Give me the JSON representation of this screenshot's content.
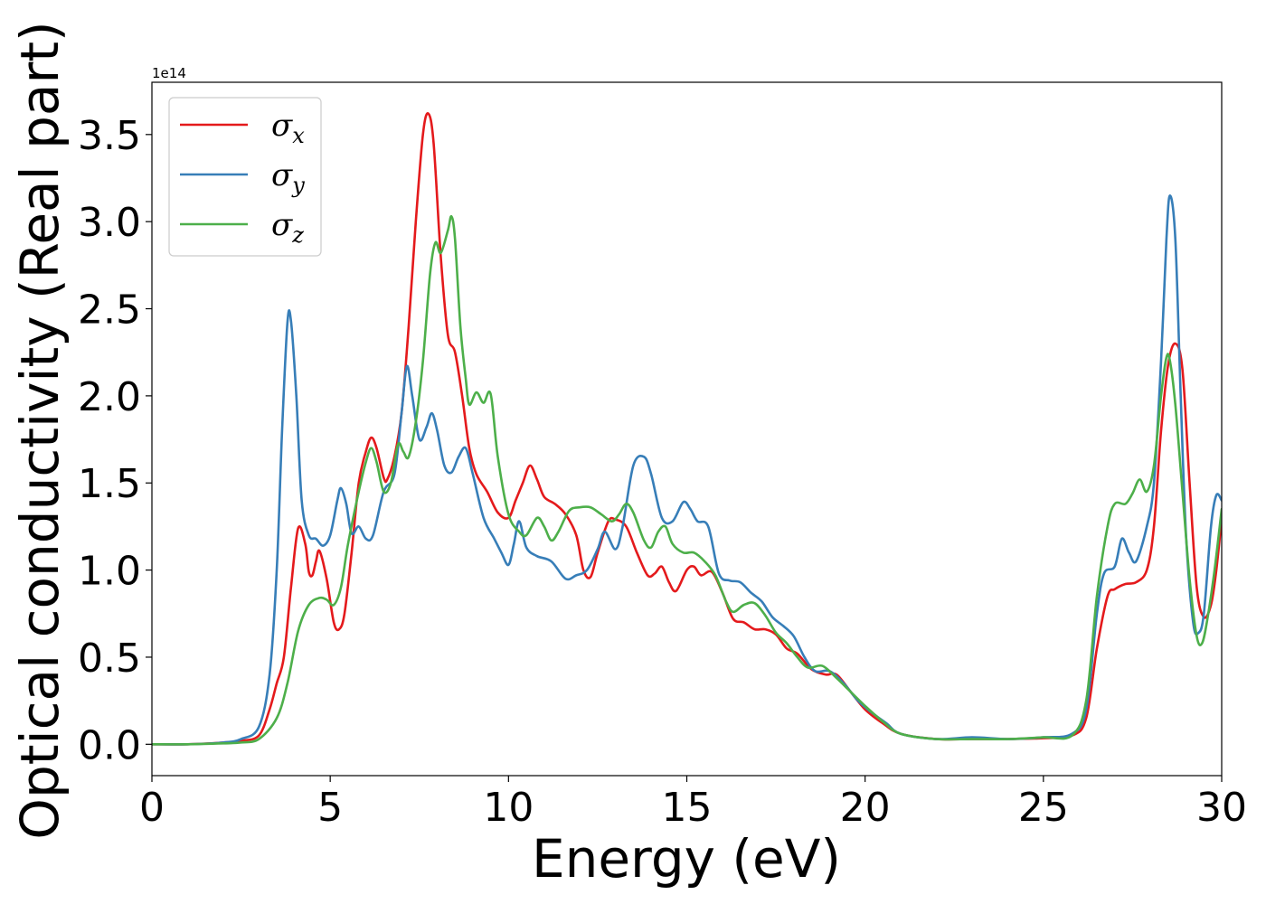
{
  "chart_data": {
    "type": "line",
    "xlabel": "Energy (eV)",
    "ylabel": "Optical conductivity (Real part)",
    "y_offset_label": "1e14",
    "xlim": [
      0,
      30
    ],
    "ylim": [
      -0.18,
      3.8
    ],
    "x_ticks": [
      0,
      5,
      10,
      15,
      20,
      25,
      30
    ],
    "x_tick_labels": [
      "0",
      "5",
      "10",
      "15",
      "20",
      "25",
      "30"
    ],
    "y_ticks": [
      0.0,
      0.5,
      1.0,
      1.5,
      2.0,
      2.5,
      3.0,
      3.5
    ],
    "y_tick_labels": [
      "0.0",
      "0.5",
      "1.0",
      "1.5",
      "2.0",
      "2.5",
      "3.0",
      "3.5"
    ],
    "grid": false,
    "legend_position": "top-left",
    "series": [
      {
        "name": "σx",
        "name_base": "σ",
        "name_sub": "x",
        "color": "#e41a1c",
        "points": [
          [
            0,
            0
          ],
          [
            1,
            0
          ],
          [
            2,
            0.01
          ],
          [
            2.5,
            0.02
          ],
          [
            3,
            0.05
          ],
          [
            3.3,
            0.2
          ],
          [
            3.5,
            0.35
          ],
          [
            3.7,
            0.5
          ],
          [
            3.9,
            0.9
          ],
          [
            4.1,
            1.24
          ],
          [
            4.3,
            1.15
          ],
          [
            4.4,
            0.99
          ],
          [
            4.5,
            0.97
          ],
          [
            4.6,
            1.05
          ],
          [
            4.7,
            1.11
          ],
          [
            4.9,
            0.95
          ],
          [
            5.1,
            0.7
          ],
          [
            5.25,
            0.66
          ],
          [
            5.4,
            0.75
          ],
          [
            5.6,
            1.1
          ],
          [
            5.8,
            1.5
          ],
          [
            6.0,
            1.68
          ],
          [
            6.15,
            1.76
          ],
          [
            6.3,
            1.7
          ],
          [
            6.5,
            1.53
          ],
          [
            6.6,
            1.52
          ],
          [
            6.8,
            1.65
          ],
          [
            7.0,
            1.9
          ],
          [
            7.2,
            2.4
          ],
          [
            7.4,
            3.0
          ],
          [
            7.6,
            3.5
          ],
          [
            7.75,
            3.62
          ],
          [
            7.9,
            3.45
          ],
          [
            8.1,
            2.8
          ],
          [
            8.3,
            2.35
          ],
          [
            8.5,
            2.25
          ],
          [
            8.7,
            2.0
          ],
          [
            8.9,
            1.7
          ],
          [
            9.1,
            1.55
          ],
          [
            9.4,
            1.45
          ],
          [
            9.7,
            1.33
          ],
          [
            10.0,
            1.3
          ],
          [
            10.2,
            1.4
          ],
          [
            10.4,
            1.5
          ],
          [
            10.6,
            1.6
          ],
          [
            10.8,
            1.52
          ],
          [
            11.0,
            1.42
          ],
          [
            11.3,
            1.38
          ],
          [
            11.6,
            1.32
          ],
          [
            11.9,
            1.2
          ],
          [
            12.1,
            1.0
          ],
          [
            12.3,
            0.96
          ],
          [
            12.5,
            1.1
          ],
          [
            12.8,
            1.28
          ],
          [
            13.0,
            1.29
          ],
          [
            13.3,
            1.25
          ],
          [
            13.6,
            1.1
          ],
          [
            13.9,
            0.97
          ],
          [
            14.1,
            0.98
          ],
          [
            14.3,
            1.02
          ],
          [
            14.5,
            0.93
          ],
          [
            14.7,
            0.88
          ],
          [
            15.0,
            1.0
          ],
          [
            15.2,
            1.02
          ],
          [
            15.4,
            0.97
          ],
          [
            15.7,
            0.99
          ],
          [
            16.0,
            0.87
          ],
          [
            16.3,
            0.72
          ],
          [
            16.6,
            0.7
          ],
          [
            16.9,
            0.66
          ],
          [
            17.2,
            0.66
          ],
          [
            17.5,
            0.63
          ],
          [
            17.8,
            0.55
          ],
          [
            18.1,
            0.52
          ],
          [
            18.5,
            0.43
          ],
          [
            18.9,
            0.4
          ],
          [
            19.2,
            0.4
          ],
          [
            19.6,
            0.3
          ],
          [
            20.0,
            0.2
          ],
          [
            20.5,
            0.12
          ],
          [
            21.0,
            0.06
          ],
          [
            22.0,
            0.03
          ],
          [
            23.0,
            0.03
          ],
          [
            24.0,
            0.03
          ],
          [
            25.0,
            0.035
          ],
          [
            25.8,
            0.05
          ],
          [
            26.2,
            0.15
          ],
          [
            26.5,
            0.55
          ],
          [
            26.8,
            0.85
          ],
          [
            27.0,
            0.89
          ],
          [
            27.3,
            0.92
          ],
          [
            27.6,
            0.93
          ],
          [
            27.9,
            1.0
          ],
          [
            28.1,
            1.25
          ],
          [
            28.3,
            1.8
          ],
          [
            28.5,
            2.18
          ],
          [
            28.7,
            2.3
          ],
          [
            28.9,
            2.15
          ],
          [
            29.1,
            1.5
          ],
          [
            29.3,
            0.9
          ],
          [
            29.5,
            0.73
          ],
          [
            29.7,
            0.8
          ],
          [
            29.85,
            1.0
          ],
          [
            30.0,
            1.3
          ]
        ]
      },
      {
        "name": "σy",
        "name_base": "σ",
        "name_sub": "y",
        "color": "#377eb8",
        "points": [
          [
            0,
            0
          ],
          [
            1,
            0
          ],
          [
            2,
            0.01
          ],
          [
            2.5,
            0.03
          ],
          [
            3,
            0.1
          ],
          [
            3.3,
            0.4
          ],
          [
            3.5,
            1.0
          ],
          [
            3.65,
            1.8
          ],
          [
            3.8,
            2.42
          ],
          [
            3.9,
            2.43
          ],
          [
            4.05,
            2.0
          ],
          [
            4.2,
            1.4
          ],
          [
            4.4,
            1.2
          ],
          [
            4.6,
            1.18
          ],
          [
            4.8,
            1.14
          ],
          [
            5.0,
            1.2
          ],
          [
            5.2,
            1.4
          ],
          [
            5.3,
            1.47
          ],
          [
            5.45,
            1.38
          ],
          [
            5.6,
            1.21
          ],
          [
            5.8,
            1.25
          ],
          [
            6.0,
            1.18
          ],
          [
            6.2,
            1.2
          ],
          [
            6.5,
            1.45
          ],
          [
            6.8,
            1.55
          ],
          [
            7.0,
            1.9
          ],
          [
            7.15,
            2.17
          ],
          [
            7.3,
            2.0
          ],
          [
            7.5,
            1.75
          ],
          [
            7.7,
            1.82
          ],
          [
            7.85,
            1.9
          ],
          [
            8.0,
            1.8
          ],
          [
            8.2,
            1.6
          ],
          [
            8.4,
            1.56
          ],
          [
            8.6,
            1.65
          ],
          [
            8.8,
            1.7
          ],
          [
            9.0,
            1.55
          ],
          [
            9.3,
            1.3
          ],
          [
            9.6,
            1.18
          ],
          [
            9.8,
            1.1
          ],
          [
            10.0,
            1.03
          ],
          [
            10.15,
            1.15
          ],
          [
            10.3,
            1.28
          ],
          [
            10.5,
            1.13
          ],
          [
            10.8,
            1.08
          ],
          [
            11.2,
            1.05
          ],
          [
            11.6,
            0.95
          ],
          [
            11.9,
            0.97
          ],
          [
            12.2,
            1.0
          ],
          [
            12.5,
            1.12
          ],
          [
            12.7,
            1.22
          ],
          [
            13.0,
            1.12
          ],
          [
            13.2,
            1.25
          ],
          [
            13.5,
            1.6
          ],
          [
            13.8,
            1.65
          ],
          [
            14.0,
            1.55
          ],
          [
            14.3,
            1.3
          ],
          [
            14.6,
            1.28
          ],
          [
            14.9,
            1.39
          ],
          [
            15.1,
            1.35
          ],
          [
            15.3,
            1.28
          ],
          [
            15.6,
            1.25
          ],
          [
            15.9,
            0.98
          ],
          [
            16.2,
            0.94
          ],
          [
            16.5,
            0.93
          ],
          [
            16.8,
            0.87
          ],
          [
            17.1,
            0.82
          ],
          [
            17.4,
            0.73
          ],
          [
            17.7,
            0.68
          ],
          [
            18.0,
            0.62
          ],
          [
            18.3,
            0.5
          ],
          [
            18.6,
            0.42
          ],
          [
            19.0,
            0.42
          ],
          [
            19.4,
            0.35
          ],
          [
            19.8,
            0.25
          ],
          [
            20.2,
            0.18
          ],
          [
            20.6,
            0.12
          ],
          [
            21.0,
            0.06
          ],
          [
            22.0,
            0.03
          ],
          [
            23.0,
            0.04
          ],
          [
            24.0,
            0.03
          ],
          [
            25.0,
            0.04
          ],
          [
            25.8,
            0.06
          ],
          [
            26.2,
            0.2
          ],
          [
            26.5,
            0.75
          ],
          [
            26.7,
            0.98
          ],
          [
            27.0,
            1.02
          ],
          [
            27.2,
            1.18
          ],
          [
            27.4,
            1.1
          ],
          [
            27.6,
            1.05
          ],
          [
            27.9,
            1.25
          ],
          [
            28.1,
            1.5
          ],
          [
            28.3,
            2.2
          ],
          [
            28.45,
            2.9
          ],
          [
            28.55,
            3.15
          ],
          [
            28.7,
            2.9
          ],
          [
            28.85,
            2.0
          ],
          [
            29.0,
            1.2
          ],
          [
            29.2,
            0.7
          ],
          [
            29.35,
            0.64
          ],
          [
            29.5,
            0.75
          ],
          [
            29.7,
            1.25
          ],
          [
            29.85,
            1.43
          ],
          [
            30.0,
            1.4
          ]
        ]
      },
      {
        "name": "σz",
        "name_base": "σ",
        "name_sub": "z",
        "color": "#4daf4a",
        "points": [
          [
            0,
            0
          ],
          [
            1,
            0
          ],
          [
            2,
            0.005
          ],
          [
            2.5,
            0.01
          ],
          [
            3,
            0.03
          ],
          [
            3.5,
            0.15
          ],
          [
            3.8,
            0.35
          ],
          [
            4.1,
            0.65
          ],
          [
            4.4,
            0.8
          ],
          [
            4.7,
            0.84
          ],
          [
            4.9,
            0.83
          ],
          [
            5.1,
            0.8
          ],
          [
            5.3,
            0.9
          ],
          [
            5.5,
            1.15
          ],
          [
            5.8,
            1.45
          ],
          [
            6.0,
            1.62
          ],
          [
            6.15,
            1.7
          ],
          [
            6.3,
            1.62
          ],
          [
            6.5,
            1.45
          ],
          [
            6.7,
            1.5
          ],
          [
            6.9,
            1.72
          ],
          [
            7.05,
            1.68
          ],
          [
            7.2,
            1.65
          ],
          [
            7.4,
            1.85
          ],
          [
            7.6,
            2.2
          ],
          [
            7.8,
            2.7
          ],
          [
            7.95,
            2.88
          ],
          [
            8.1,
            2.82
          ],
          [
            8.3,
            2.95
          ],
          [
            8.4,
            3.03
          ],
          [
            8.5,
            2.9
          ],
          [
            8.65,
            2.4
          ],
          [
            8.8,
            2.1
          ],
          [
            8.9,
            1.95
          ],
          [
            9.1,
            2.02
          ],
          [
            9.3,
            1.96
          ],
          [
            9.5,
            2.01
          ],
          [
            9.7,
            1.65
          ],
          [
            10.0,
            1.32
          ],
          [
            10.3,
            1.22
          ],
          [
            10.5,
            1.2
          ],
          [
            10.8,
            1.3
          ],
          [
            11.0,
            1.25
          ],
          [
            11.2,
            1.17
          ],
          [
            11.4,
            1.22
          ],
          [
            11.7,
            1.34
          ],
          [
            12.0,
            1.36
          ],
          [
            12.3,
            1.36
          ],
          [
            12.6,
            1.32
          ],
          [
            12.9,
            1.28
          ],
          [
            13.1,
            1.32
          ],
          [
            13.3,
            1.38
          ],
          [
            13.5,
            1.33
          ],
          [
            13.8,
            1.17
          ],
          [
            14.0,
            1.13
          ],
          [
            14.2,
            1.22
          ],
          [
            14.4,
            1.25
          ],
          [
            14.6,
            1.15
          ],
          [
            14.9,
            1.1
          ],
          [
            15.2,
            1.1
          ],
          [
            15.5,
            1.05
          ],
          [
            15.8,
            0.97
          ],
          [
            16.1,
            0.82
          ],
          [
            16.3,
            0.76
          ],
          [
            16.6,
            0.8
          ],
          [
            16.9,
            0.81
          ],
          [
            17.2,
            0.74
          ],
          [
            17.5,
            0.64
          ],
          [
            17.8,
            0.58
          ],
          [
            18.1,
            0.5
          ],
          [
            18.4,
            0.44
          ],
          [
            18.8,
            0.45
          ],
          [
            19.2,
            0.38
          ],
          [
            19.6,
            0.3
          ],
          [
            20.0,
            0.22
          ],
          [
            20.5,
            0.13
          ],
          [
            21.0,
            0.06
          ],
          [
            22.0,
            0.03
          ],
          [
            23.0,
            0.03
          ],
          [
            24.0,
            0.03
          ],
          [
            25.0,
            0.04
          ],
          [
            25.8,
            0.05
          ],
          [
            26.2,
            0.25
          ],
          [
            26.5,
            0.85
          ],
          [
            26.8,
            1.25
          ],
          [
            27.0,
            1.38
          ],
          [
            27.3,
            1.38
          ],
          [
            27.5,
            1.44
          ],
          [
            27.7,
            1.52
          ],
          [
            27.9,
            1.45
          ],
          [
            28.1,
            1.6
          ],
          [
            28.3,
            2.0
          ],
          [
            28.45,
            2.22
          ],
          [
            28.55,
            2.2
          ],
          [
            28.7,
            1.95
          ],
          [
            28.9,
            1.45
          ],
          [
            29.1,
            0.95
          ],
          [
            29.3,
            0.62
          ],
          [
            29.45,
            0.58
          ],
          [
            29.6,
            0.72
          ],
          [
            29.8,
            1.0
          ],
          [
            30.0,
            1.35
          ]
        ]
      }
    ]
  }
}
